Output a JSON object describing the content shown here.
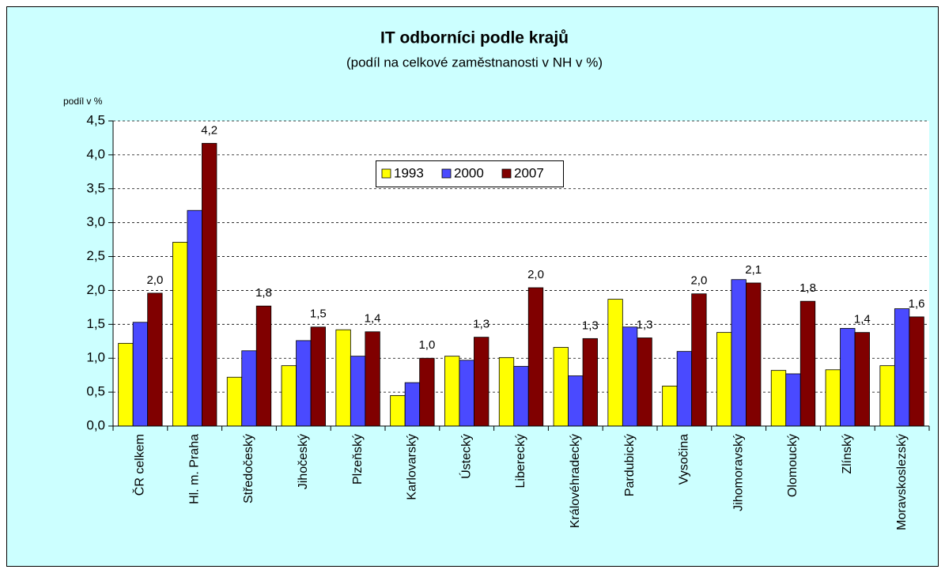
{
  "chart_data": {
    "type": "bar",
    "title": "IT odborníci podle krajů",
    "subtitle": "(podíl na celkové zaměstnanosti v NH v %)",
    "y_label": "podíl v %",
    "categories": [
      "ČR celkem",
      "Hl. m. Praha",
      "Středočeský",
      "Jihočeský",
      "Plzeňský",
      "Karlovarský",
      "Ústecký",
      "Liberecký",
      "Královéhradecký",
      "Pardubický",
      "Vysočina",
      "Jihomoravský",
      "Olomoucký",
      "Zlínský",
      "Moravskoslezský"
    ],
    "series": [
      {
        "name": "1993",
        "color": "#ffff00",
        "values": [
          1.22,
          2.71,
          0.72,
          0.89,
          1.42,
          0.45,
          1.03,
          1.01,
          1.16,
          1.87,
          0.59,
          1.38,
          0.82,
          0.83,
          0.89
        ]
      },
      {
        "name": "2000",
        "color": "#4a4aff",
        "values": [
          1.53,
          3.18,
          1.11,
          1.26,
          1.03,
          0.64,
          0.97,
          0.88,
          0.74,
          1.46,
          1.1,
          2.16,
          0.77,
          1.44,
          1.73
        ]
      },
      {
        "name": "2007",
        "color": "#800000",
        "values": [
          1.96,
          4.17,
          1.77,
          1.46,
          1.39,
          1.0,
          1.31,
          2.04,
          1.29,
          1.3,
          1.95,
          2.11,
          1.84,
          1.38,
          1.61
        ],
        "value_labels": [
          "2,0",
          "4,2",
          "1,8",
          "1,5",
          "1,4",
          "1,0",
          "1,3",
          "2,0",
          "1,3",
          "1,3",
          "2,0",
          "2,1",
          "1,8",
          "1,4",
          "1,6"
        ]
      }
    ],
    "ylim": [
      0,
      4.5
    ],
    "yticks": [
      {
        "value": 0,
        "label": "0,0"
      },
      {
        "value": 0.5,
        "label": "0,5"
      },
      {
        "value": 1,
        "label": "1,0"
      },
      {
        "value": 1.5,
        "label": "1,5"
      },
      {
        "value": 2,
        "label": "2,0"
      },
      {
        "value": 2.5,
        "label": "2,5"
      },
      {
        "value": 3,
        "label": "3,0"
      },
      {
        "value": 3.5,
        "label": "3,5"
      },
      {
        "value": 4,
        "label": "4,0"
      },
      {
        "value": 4.5,
        "label": "4,5"
      }
    ],
    "grid": true
  }
}
